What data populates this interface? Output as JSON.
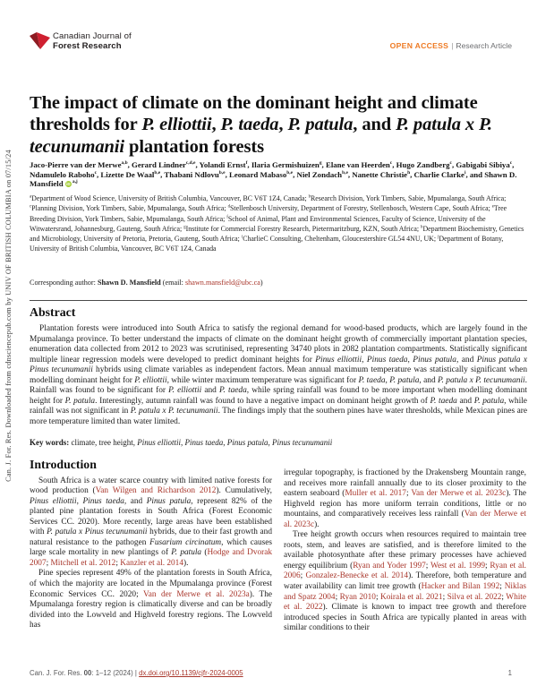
{
  "theme": {
    "accent_red": "#a8352a",
    "open_access_orange": "#ee7a23",
    "orcid_green": "#a6ce39",
    "leaf_bright": "#cf2030",
    "leaf_dark": "#8e1b22"
  },
  "watermark": {
    "text": "Can. J. For. Res. Downloaded from cdnsciencepub.com by UNIV OF BRITISH COLUMBIA on 07/15/24"
  },
  "header": {
    "journal_line1": "Canadian Journal of",
    "journal_line2": "Forest Research",
    "open_access": "OPEN ACCESS",
    "separator": "|",
    "article_type": "Research Article"
  },
  "title": {
    "segments": [
      {
        "t": "The impact of climate on the dominant height and climate thresholds for "
      },
      {
        "t": "P. elliottii",
        "s": "i"
      },
      {
        "t": ", "
      },
      {
        "t": "P. taeda",
        "s": "i"
      },
      {
        "t": ", "
      },
      {
        "t": "P. patula",
        "s": "i"
      },
      {
        "t": ", and "
      },
      {
        "t": "P. patula x P. tecunumanii",
        "s": "i"
      },
      {
        "t": " plantation forests"
      }
    ]
  },
  "authors": {
    "segments": [
      {
        "t": "Jaco-Pierre van der Merwe"
      },
      {
        "t": "a,b",
        "s": "sup"
      },
      {
        "t": ", "
      },
      {
        "t": "Gerard Lindner"
      },
      {
        "t": "c,d,e",
        "s": "sup"
      },
      {
        "t": ", "
      },
      {
        "t": "Yolandi Ernst"
      },
      {
        "t": "f",
        "s": "sup"
      },
      {
        "t": ", "
      },
      {
        "t": "Ilaria Germishuizen"
      },
      {
        "t": "g",
        "s": "sup"
      },
      {
        "t": ", "
      },
      {
        "t": "Elane van Heerden"
      },
      {
        "t": "c",
        "s": "sup"
      },
      {
        "t": ", "
      },
      {
        "t": "Hugo Zandberg"
      },
      {
        "t": "c",
        "s": "sup"
      },
      {
        "t": ", "
      },
      {
        "t": "Gabigabi Sibiya"
      },
      {
        "t": "c",
        "s": "sup"
      },
      {
        "t": ", "
      },
      {
        "t": "Ndamulelo Raboho"
      },
      {
        "t": "c",
        "s": "sup"
      },
      {
        "t": ", "
      },
      {
        "t": "Lizette De Waal"
      },
      {
        "t": "b,e",
        "s": "sup"
      },
      {
        "t": ", "
      },
      {
        "t": "Thabani Ndlovu"
      },
      {
        "t": "b,e",
        "s": "sup"
      },
      {
        "t": ", "
      },
      {
        "t": "Leonard Mabaso"
      },
      {
        "t": "b,e",
        "s": "sup"
      },
      {
        "t": ", "
      },
      {
        "t": "Niel Zondach"
      },
      {
        "t": "b,e",
        "s": "sup"
      },
      {
        "t": ", "
      },
      {
        "t": "Nanette Christie"
      },
      {
        "t": "h",
        "s": "sup"
      },
      {
        "t": ", "
      },
      {
        "t": "Charlie Clarke"
      },
      {
        "t": "i",
        "s": "sup"
      },
      {
        "t": ", and "
      },
      {
        "t": "Shawn D. Mansfield "
      },
      {
        "t": "iD",
        "s": "orcid",
        "n": "orcid-icon"
      },
      {
        "t": "a,j",
        "s": "sup"
      }
    ]
  },
  "affiliations": {
    "segments": [
      {
        "t": "a",
        "s": "sup"
      },
      {
        "t": "Department of Wood Science, University of British Columbia, Vancouver, BC V6T 1Z4, Canada; "
      },
      {
        "t": "b",
        "s": "sup"
      },
      {
        "t": "Research Division, York Timbers, Sabie, Mpumalanga, South Africa; "
      },
      {
        "t": "c",
        "s": "sup"
      },
      {
        "t": "Planning Division, York Timbers, Sabie, Mpumalanga, South Africa; "
      },
      {
        "t": "d",
        "s": "sup"
      },
      {
        "t": "Stellenbosch University, Department of Forestry, Stellenbosch, Western Cape, South Africa; "
      },
      {
        "t": "e",
        "s": "sup"
      },
      {
        "t": "Tree Breeding Division, York Timbers, Sabie, Mpumalanga, South Africa; "
      },
      {
        "t": "f",
        "s": "sup"
      },
      {
        "t": "School of Animal, Plant and Environmental Sciences, Faculty of Science, University of the Witwatersrand, Johannesburg, Gauteng, South Africa; "
      },
      {
        "t": "g",
        "s": "sup"
      },
      {
        "t": "Institute for Commercial Forestry Research, Pietermaritzburg, KZN, South Africa; "
      },
      {
        "t": "h",
        "s": "sup"
      },
      {
        "t": "Department Biochemistry, Genetics and Microbiology, University of Pretoria, Pretoria, Gauteng, South Africa; "
      },
      {
        "t": "i",
        "s": "sup"
      },
      {
        "t": "CharlieC Consulting, Cheltenham, Gloucestershire GL54 4NU, UK; "
      },
      {
        "t": "j",
        "s": "sup"
      },
      {
        "t": "Department of Botany, University of British Columbia, Vancouver, BC V6T 1Z4, Canada"
      }
    ]
  },
  "corresponding": {
    "segments": [
      {
        "t": "Corresponding author: "
      },
      {
        "t": "Shawn D. Mansfield",
        "s": "b"
      },
      {
        "t": " (email: "
      },
      {
        "t": "shawn.mansfield@ubc.ca",
        "s": "r",
        "n": "email-link"
      },
      {
        "t": ")"
      }
    ]
  },
  "abstract": {
    "heading": "Abstract",
    "segments": [
      {
        "t": "Plantation forests were introduced into South Africa to satisfy the regional demand for wood-based products, which are largely found in the Mpumalanga province. To better understand the impacts of climate on the dominant height growth of commercially important plantation species, enumeration data collected from 2012 to 2023 was scrutinised, representing 34740 plots in 2082 plantation compartments. Statistically significant multiple linear regression models were developed to predict dominant heights for "
      },
      {
        "t": "Pinus elliottii",
        "s": "i"
      },
      {
        "t": ", "
      },
      {
        "t": "Pinus taeda",
        "s": "i"
      },
      {
        "t": ", "
      },
      {
        "t": "Pinus patula",
        "s": "i"
      },
      {
        "t": ", and "
      },
      {
        "t": "Pinus patula x Pinus tecunumanii",
        "s": "i"
      },
      {
        "t": " hybrids using climate variables as independent factors. Mean annual maximum temperature was statistically significant when modelling dominant height for "
      },
      {
        "t": "P. elliottii",
        "s": "i"
      },
      {
        "t": ", while winter maximum temperature was significant for "
      },
      {
        "t": "P. taeda",
        "s": "i"
      },
      {
        "t": ", "
      },
      {
        "t": "P. patula",
        "s": "i"
      },
      {
        "t": ", and "
      },
      {
        "t": "P. patula x P. tecunumanii",
        "s": "i"
      },
      {
        "t": ". Rainfall was found to be significant for "
      },
      {
        "t": "P. elliottii",
        "s": "i"
      },
      {
        "t": " and "
      },
      {
        "t": "P. taeda",
        "s": "i"
      },
      {
        "t": ", while spring rainfall was found to be more important when modelling dominant height for "
      },
      {
        "t": "P. patula",
        "s": "i"
      },
      {
        "t": ". Interestingly, autumn rainfall was found to have a negative impact on dominant height growth of "
      },
      {
        "t": "P. taeda",
        "s": "i"
      },
      {
        "t": " and "
      },
      {
        "t": "P. patula",
        "s": "i"
      },
      {
        "t": ", while rainfall was not significant in "
      },
      {
        "t": "P. patula x P. tecunumanii",
        "s": "i"
      },
      {
        "t": ". The findings imply that the southern pines have water thresholds, while Mexican pines are more temperature limited than water limited."
      }
    ]
  },
  "keywords": {
    "segments": [
      {
        "t": "Key words: ",
        "s": "b"
      },
      {
        "t": "climate, tree height, "
      },
      {
        "t": "Pinus elliottii",
        "s": "i"
      },
      {
        "t": ", "
      },
      {
        "t": "Pinus taeda",
        "s": "i"
      },
      {
        "t": ", "
      },
      {
        "t": "Pinus patula",
        "s": "i"
      },
      {
        "t": ", "
      },
      {
        "t": "Pinus tecunumanii",
        "s": "i"
      }
    ]
  },
  "introduction": {
    "heading": "Introduction",
    "left_p1": [
      {
        "t": "South Africa is a water scarce country with limited native forests for wood production ("
      },
      {
        "t": "Van Wilgen and Richardson 2012",
        "s": "r"
      },
      {
        "t": "). Cumulatively, "
      },
      {
        "t": "Pinus elliottii",
        "s": "i"
      },
      {
        "t": ", "
      },
      {
        "t": "Pinus taeda",
        "s": "i"
      },
      {
        "t": ", and "
      },
      {
        "t": "Pinus patula",
        "s": "i"
      },
      {
        "t": ", represent 82% of the planted pine plantation forests in South Africa (Forest Economic Services CC. 2020). More recently, large areas have been established with "
      },
      {
        "t": "P. patula x Pinus tecunumanii",
        "s": "i"
      },
      {
        "t": " hybrids, due to their fast growth and natural resistance to the pathogen "
      },
      {
        "t": "Fusarium circinatum",
        "s": "i"
      },
      {
        "t": ", which causes large scale mortality in new plantings of "
      },
      {
        "t": "P. patula",
        "s": "i"
      },
      {
        "t": " ("
      },
      {
        "t": "Hodge and Dvorak 2007",
        "s": "r"
      },
      {
        "t": "; "
      },
      {
        "t": "Mitchell et al. 2012",
        "s": "r"
      },
      {
        "t": "; "
      },
      {
        "t": "Kanzler et al. 2014",
        "s": "r"
      },
      {
        "t": ")."
      }
    ],
    "left_p2": [
      {
        "t": "Pine species represent 49% of the plantation forests in South Africa, of which the majority are located in the Mpumalanga province (Forest Economic Services CC. 2020; "
      },
      {
        "t": "Van der Merwe et al. 2023a",
        "s": "r"
      },
      {
        "t": "). The Mpumalanga forestry region is climatically diverse and can be broadly divided into the Lowveld and Highveld forestry regions. The Lowveld has"
      }
    ],
    "right_p1": [
      {
        "t": "irregular topography, is fractioned by the Drakensberg Mountain range, and receives more rainfall annually due to its closer proximity to the eastern seaboard ("
      },
      {
        "t": "Muller et al. 2017",
        "s": "r"
      },
      {
        "t": "; "
      },
      {
        "t": "Van der Merwe et al. 2023c",
        "s": "r"
      },
      {
        "t": "). The Highveld region has more uniform terrain conditions, little or no mountains, and comparatively receives less rainfall ("
      },
      {
        "t": "Van der Merwe et al. 2023c",
        "s": "r"
      },
      {
        "t": ")."
      }
    ],
    "right_p2": [
      {
        "t": "Tree height growth occurs when resources required to maintain tree roots, stem, and leaves are satisfied, and is therefore limited to the available photosynthate after these primary processes have achieved energy equilibrium ("
      },
      {
        "t": "Ryan and Yoder 1997",
        "s": "r"
      },
      {
        "t": "; "
      },
      {
        "t": "West et al. 1999",
        "s": "r"
      },
      {
        "t": "; "
      },
      {
        "t": "Ryan et al. 2006",
        "s": "r"
      },
      {
        "t": "; "
      },
      {
        "t": "Gonzalez-Benecke et al. 2014",
        "s": "r"
      },
      {
        "t": "). Therefore, both temperature and water availability can limit tree growth ("
      },
      {
        "t": "Hacker and Bilan 1992",
        "s": "r"
      },
      {
        "t": "; "
      },
      {
        "t": "Niklas and Spatz 2004",
        "s": "r"
      },
      {
        "t": "; "
      },
      {
        "t": "Ryan 2010",
        "s": "r"
      },
      {
        "t": "; "
      },
      {
        "t": "Koirala et al. 2021",
        "s": "r"
      },
      {
        "t": "; "
      },
      {
        "t": "Silva et al. 2022",
        "s": "r"
      },
      {
        "t": "; "
      },
      {
        "t": "White et al. 2022",
        "s": "r"
      },
      {
        "t": "). Climate is known to impact tree growth and therefore introduced species in South Africa are typically planted in areas with similar conditions to their"
      }
    ]
  },
  "footer": {
    "citation_segments": [
      {
        "t": "Can. J. For. Res. "
      },
      {
        "t": "00",
        "s": "b"
      },
      {
        "t": ": 1–12 (2024) | "
      },
      {
        "t": "dx.doi.org/10.1139/cjfr-2024-0005",
        "s": "ru",
        "n": "doi-link"
      }
    ],
    "page_number": "1"
  }
}
